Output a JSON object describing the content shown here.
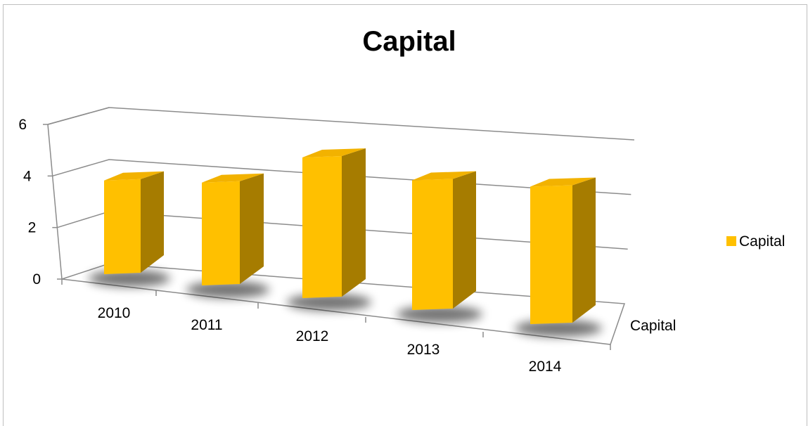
{
  "chart_data": {
    "type": "bar",
    "title": "Capital",
    "categories": [
      "2010",
      "2011",
      "2012",
      "2013",
      "2014"
    ],
    "series": [
      {
        "name": "Capital",
        "values": [
          3.7,
          3.9,
          5.0,
          4.5,
          4.6
        ]
      }
    ],
    "ylim": [
      0,
      6
    ],
    "yticks": [
      "0",
      "2",
      "4",
      "6"
    ],
    "depth_axis_label": "Capital",
    "legend": {
      "position": "right",
      "entries": [
        "Capital"
      ]
    },
    "grid": true,
    "bar_color": "#FFC000",
    "bar_side_color": "#A67C00",
    "bar_top_color": "#F2B200"
  }
}
